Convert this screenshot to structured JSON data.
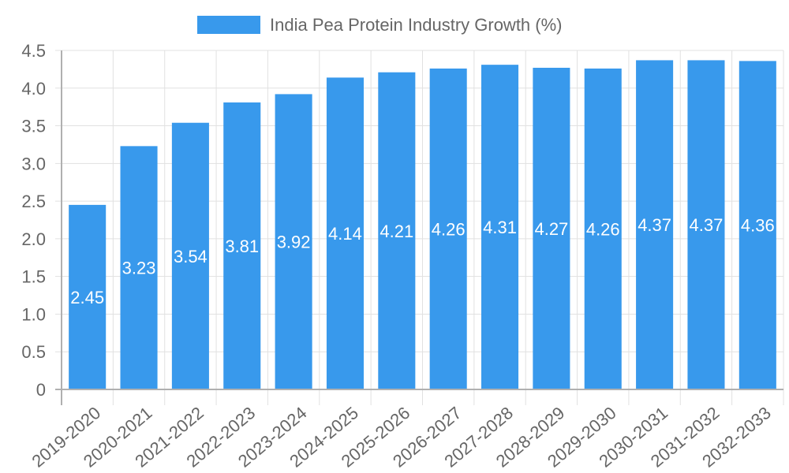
{
  "chart_data": {
    "type": "bar",
    "title": "",
    "legend": {
      "position": "top",
      "entries": [
        {
          "label": "India Pea Protein Industry Growth (%)",
          "color": "#3899ec"
        }
      ]
    },
    "xlabel": "",
    "ylabel": "",
    "categories": [
      "2019-2020",
      "2020-2021",
      "2021-2022",
      "2022-2023",
      "2023-2024",
      "2024-2025",
      "2025-2026",
      "2026-2027",
      "2027-2028",
      "2028-2029",
      "2029-2030",
      "2030-2031",
      "2031-2032",
      "2032-2033"
    ],
    "series": [
      {
        "name": "India Pea Protein Industry Growth (%)",
        "color": "#3899ec",
        "values": [
          2.45,
          3.23,
          3.54,
          3.81,
          3.92,
          4.14,
          4.21,
          4.26,
          4.31,
          4.27,
          4.26,
          4.37,
          4.37,
          4.36
        ]
      }
    ],
    "ylim": [
      0,
      4.5
    ],
    "yticks": [
      "0",
      "0.5",
      "1.0",
      "1.5",
      "2.0",
      "2.5",
      "3.0",
      "3.5",
      "4.0",
      "4.5"
    ],
    "grid": true,
    "data_labels": true
  }
}
